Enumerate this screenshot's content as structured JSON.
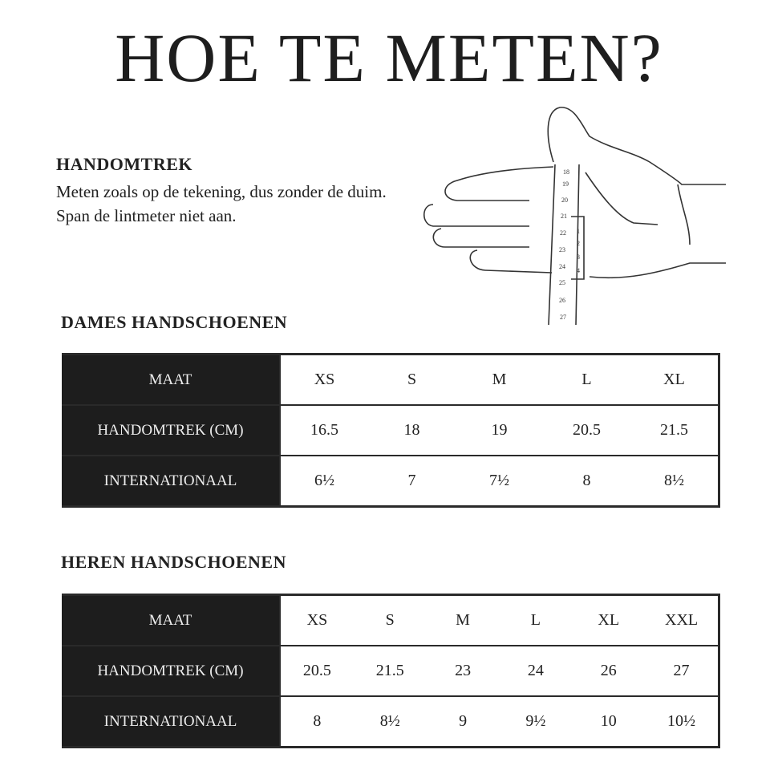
{
  "title": "HOE TE METEN?",
  "measure": {
    "heading": "HANDOMTREK",
    "text": "Meten zoals op de tekening, dus zonder de duim. Span de lintmeter niet aan.",
    "tape_numbers": [
      "18",
      "19",
      "20",
      "21",
      "22",
      "23",
      "24",
      "25",
      "26",
      "27"
    ],
    "inch_numbers": [
      "1",
      "2",
      "3",
      "4"
    ]
  },
  "dames": {
    "heading": "DAMES HANDSCHOENEN",
    "rows": [
      {
        "label": "MAAT",
        "values": [
          "XS",
          "S",
          "M",
          "L",
          "XL"
        ]
      },
      {
        "label": "HANDOMTREK (CM)",
        "values": [
          "16.5",
          "18",
          "19",
          "20.5",
          "21.5"
        ]
      },
      {
        "label": "INTERNATIONAAL",
        "values": [
          "6½",
          "7",
          "7½",
          "8",
          "8½"
        ]
      }
    ]
  },
  "heren": {
    "heading": "HEREN HANDSCHOENEN",
    "rows": [
      {
        "label": "MAAT",
        "values": [
          "XS",
          "S",
          "M",
          "L",
          "XL",
          "XXL"
        ]
      },
      {
        "label": "HANDOMTREK (CM)",
        "values": [
          "20.5",
          "21.5",
          "23",
          "24",
          "26",
          "27"
        ]
      },
      {
        "label": "INTERNATIONAAL",
        "values": [
          "8",
          "8½",
          "9",
          "9½",
          "10",
          "10½"
        ]
      }
    ]
  }
}
